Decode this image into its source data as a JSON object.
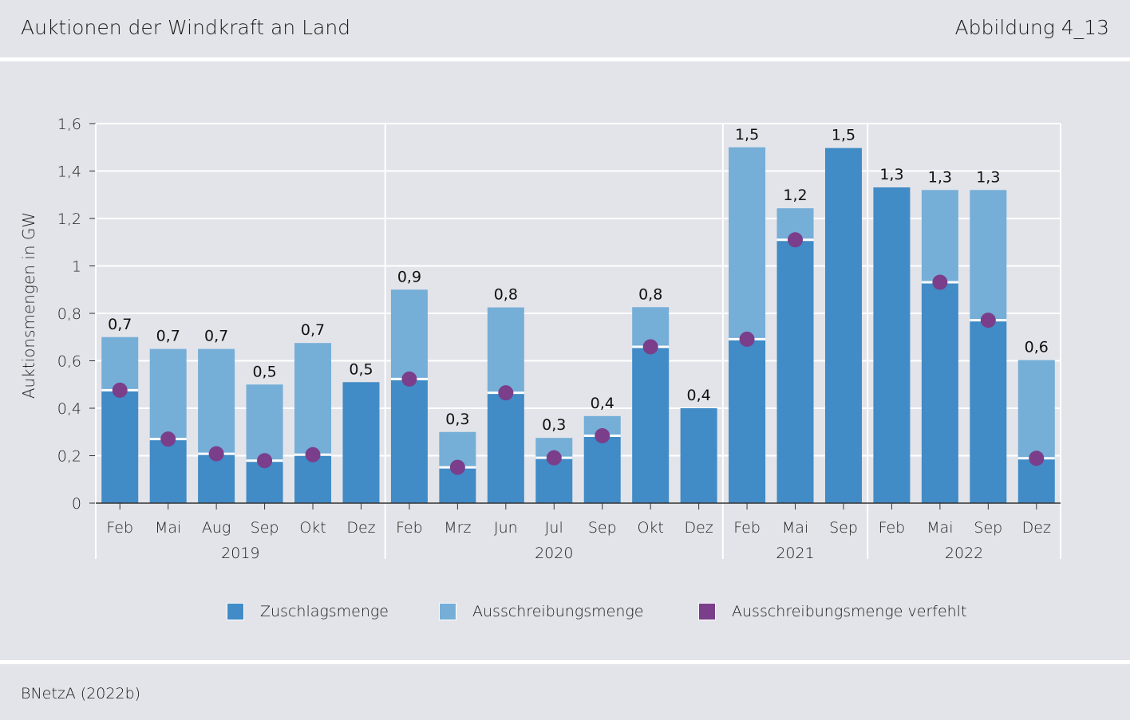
{
  "header": {
    "title": "Auktionen der Windkraft an Land",
    "figure_number": "Abbildung 4_13"
  },
  "footer": {
    "source": "BNetzA (2022b)"
  },
  "legend": {
    "zuschlag": "Zuschlagsmenge",
    "ausschreibung": "Ausschreibungsmenge",
    "verfehlt": "Ausschreibungsmenge verfehlt"
  },
  "colors": {
    "zuschlag": "#418bc6",
    "ausschreibung": "#75aed7",
    "verfehlt": "#7a3e8b",
    "grid": "#ffffff",
    "axis": "#333333"
  },
  "chart_data": {
    "type": "bar",
    "ylabel": "Auktionsmengen in GW",
    "ylim": [
      0,
      1.6
    ],
    "yticks": [
      0,
      0.2,
      0.4,
      0.6,
      0.8,
      1,
      1.2,
      1.4,
      1.6
    ],
    "ytick_labels": [
      "0",
      "0,2",
      "0,4",
      "0,6",
      "0,8",
      "1",
      "1,2",
      "1,4",
      "1,6"
    ],
    "grid": true,
    "legend_position": "bottom",
    "groups": [
      {
        "label": "2019",
        "count": 6
      },
      {
        "label": "2020",
        "count": 7
      },
      {
        "label": "2021",
        "count": 3
      },
      {
        "label": "2022",
        "count": 4
      }
    ],
    "categories": [
      "Feb",
      "Mai",
      "Aug",
      "Sep",
      "Okt",
      "Dez",
      "Feb",
      "Mrz",
      "Jun",
      "Jul",
      "Sep",
      "Okt",
      "Dez",
      "Feb",
      "Mai",
      "Sep",
      "Feb",
      "Mai",
      "Sep",
      "Dez"
    ],
    "series": [
      {
        "name": "Zuschlagsmenge",
        "values": [
          0.476,
          0.27,
          0.208,
          0.179,
          0.204,
          0.51,
          0.523,
          0.151,
          0.465,
          0.191,
          0.284,
          0.659,
          0.4,
          0.691,
          1.11,
          1.497,
          1.331,
          0.931,
          0.771,
          0.189
        ]
      },
      {
        "name": "Ausschreibungsmenge",
        "values": [
          0.7,
          0.65,
          0.65,
          0.5,
          0.675,
          0.5,
          0.9,
          0.3,
          0.825,
          0.275,
          0.367,
          0.826,
          0.4,
          1.5,
          1.243,
          1.49,
          1.32,
          1.32,
          1.32,
          0.603
        ]
      },
      {
        "name": "Ausschreibungsmenge verfehlt",
        "values": [
          0.476,
          0.27,
          0.208,
          0.179,
          0.204,
          null,
          0.523,
          0.151,
          0.465,
          0.191,
          0.284,
          0.659,
          null,
          0.691,
          1.11,
          null,
          null,
          0.931,
          0.771,
          0.189
        ]
      }
    ],
    "data_labels": [
      "0,7",
      "0,7",
      "0,7",
      "0,5",
      "0,7",
      "0,5",
      "0,9",
      "0,3",
      "0,8",
      "0,3",
      "0,4",
      "0,8",
      "0,4",
      "1,5",
      "1,2",
      "1,5",
      "1,3",
      "1,3",
      "1,3",
      "0,6"
    ]
  }
}
